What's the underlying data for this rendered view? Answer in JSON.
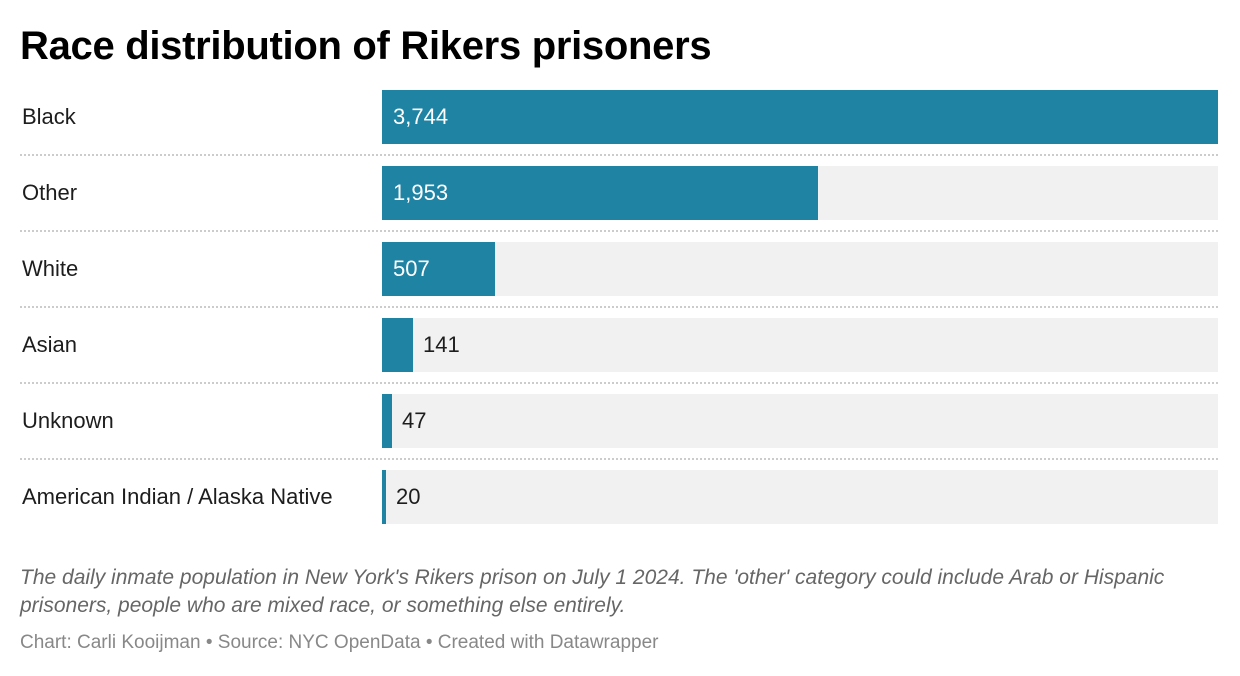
{
  "chart_data": {
    "type": "bar",
    "orientation": "horizontal",
    "title": "Race distribution of Rikers prisoners",
    "categories": [
      "Black",
      "Other",
      "White",
      "Asian",
      "Unknown",
      "American Indian / Alaska Native"
    ],
    "values": [
      3744,
      1953,
      507,
      141,
      47,
      20
    ],
    "value_labels": [
      "3,744",
      "1,953",
      "507",
      "141",
      "47",
      "20"
    ],
    "xlim": [
      0,
      3744
    ],
    "grid": false,
    "legend": "none",
    "bar_color": "#1f83a4",
    "track_color": "#f1f1f1"
  },
  "notes": {
    "description": "The daily inmate population in New York's Rikers prison on July 1 2024. The 'other' category could include Arab or Hispanic prisoners, people who are mixed race, or something else entirely.",
    "credit": "Chart: Carli Kooijman • Source: NYC OpenData • Created with Datawrapper"
  }
}
